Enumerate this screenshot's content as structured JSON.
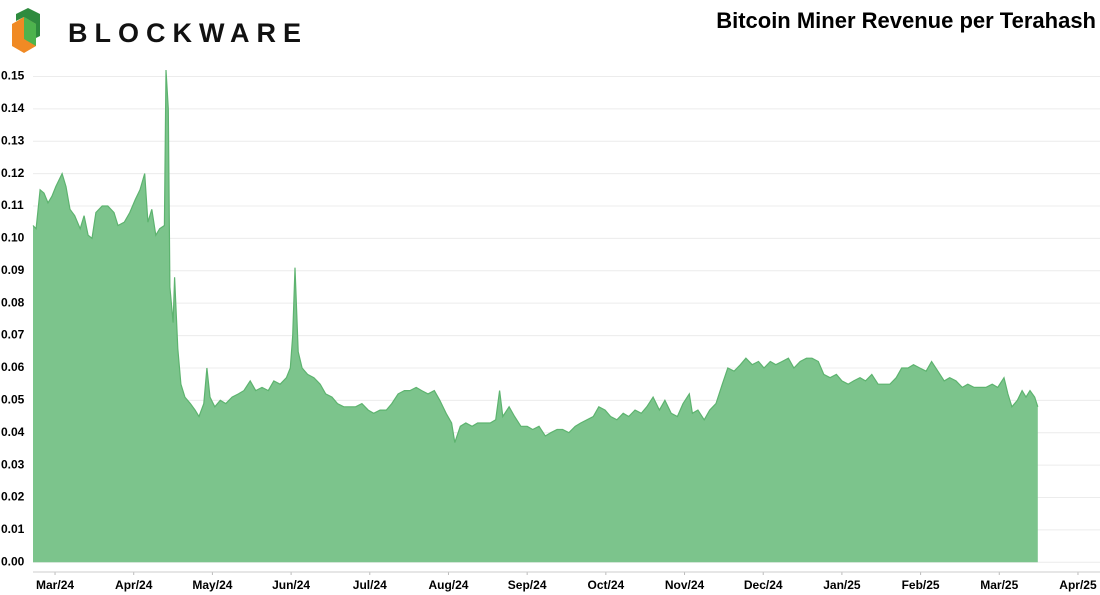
{
  "brand": "BLOCKWARE",
  "chart_data": {
    "type": "area",
    "title": "Bitcoin Miner Revenue per Terahash",
    "color": "#7cc48c",
    "line_color": "#5db36f",
    "grid": true,
    "xlim": [
      -0.28,
      13.28
    ],
    "ylim": [
      -0.003,
      0.152
    ],
    "xticks": [
      {
        "value": 0,
        "label": "Mar/24"
      },
      {
        "value": 1,
        "label": "Apr/24"
      },
      {
        "value": 2,
        "label": "May/24"
      },
      {
        "value": 3,
        "label": "Jun/24"
      },
      {
        "value": 4,
        "label": "Jul/24"
      },
      {
        "value": 5,
        "label": "Aug/24"
      },
      {
        "value": 6,
        "label": "Sep/24"
      },
      {
        "value": 7,
        "label": "Oct/24"
      },
      {
        "value": 8,
        "label": "Nov/24"
      },
      {
        "value": 9,
        "label": "Dec/24"
      },
      {
        "value": 10,
        "label": "Jan/25"
      },
      {
        "value": 11,
        "label": "Feb/25"
      },
      {
        "value": 12,
        "label": "Mar/25"
      },
      {
        "value": 13,
        "label": "Apr/25"
      }
    ],
    "yticks": [
      {
        "value": 0,
        "label": "0.00"
      },
      0.01,
      0.02,
      0.03,
      0.04,
      0.05,
      0.06,
      0.07,
      0.08,
      0.09,
      {
        "value": 0.1,
        "label": "0.10"
      },
      0.11,
      0.12,
      0.13,
      0.14,
      0.15
    ],
    "x": [
      -0.28,
      -0.24,
      -0.19,
      -0.14,
      -0.09,
      -0.04,
      0.01,
      0.09,
      0.14,
      0.19,
      0.25,
      0.32,
      0.37,
      0.42,
      0.47,
      0.52,
      0.6,
      0.67,
      0.75,
      0.8,
      0.88,
      0.95,
      1.02,
      1.08,
      1.14,
      1.18,
      1.23,
      1.28,
      1.33,
      1.39,
      1.41,
      1.44,
      1.46,
      1.5,
      1.52,
      1.56,
      1.6,
      1.65,
      1.72,
      1.78,
      1.83,
      1.89,
      1.93,
      1.97,
      2.03,
      2.1,
      2.17,
      2.25,
      2.33,
      2.4,
      2.48,
      2.55,
      2.63,
      2.71,
      2.78,
      2.86,
      2.94,
      2.99,
      3.02,
      3.05,
      3.09,
      3.14,
      3.21,
      3.29,
      3.37,
      3.44,
      3.52,
      3.59,
      3.67,
      3.75,
      3.82,
      3.9,
      3.98,
      4.05,
      4.13,
      4.21,
      4.28,
      4.36,
      4.44,
      4.51,
      4.59,
      4.66,
      4.74,
      4.82,
      4.89,
      4.97,
      5.04,
      5.08,
      5.15,
      5.22,
      5.3,
      5.37,
      5.45,
      5.53,
      5.6,
      5.65,
      5.69,
      5.77,
      5.84,
      5.92,
      6.0,
      6.07,
      6.15,
      6.23,
      6.3,
      6.38,
      6.45,
      6.53,
      6.61,
      6.68,
      6.76,
      6.84,
      6.91,
      6.99,
      7.06,
      7.14,
      7.22,
      7.29,
      7.37,
      7.45,
      7.52,
      7.6,
      7.68,
      7.75,
      7.83,
      7.91,
      7.98,
      8.06,
      8.1,
      8.17,
      8.25,
      8.32,
      8.4,
      8.48,
      8.55,
      8.63,
      8.71,
      8.78,
      8.86,
      8.94,
      9.01,
      9.09,
      9.16,
      9.24,
      9.32,
      9.39,
      9.47,
      9.55,
      9.62,
      9.7,
      9.77,
      9.85,
      9.93,
      10.0,
      10.08,
      10.15,
      10.23,
      10.3,
      10.38,
      10.46,
      10.53,
      10.61,
      10.69,
      10.76,
      10.84,
      10.91,
      10.99,
      11.07,
      11.14,
      11.22,
      11.3,
      11.37,
      11.45,
      11.53,
      11.6,
      11.68,
      11.75,
      11.83,
      11.91,
      11.98,
      12.06,
      12.11,
      12.16,
      12.23,
      12.29,
      12.34,
      12.39,
      12.45,
      12.49
    ],
    "values": [
      0.104,
      0.103,
      0.115,
      0.114,
      0.111,
      0.113,
      0.116,
      0.12,
      0.116,
      0.109,
      0.107,
      0.103,
      0.107,
      0.101,
      0.1,
      0.108,
      0.11,
      0.11,
      0.108,
      0.104,
      0.105,
      0.108,
      0.112,
      0.115,
      0.12,
      0.105,
      0.109,
      0.101,
      0.103,
      0.104,
      0.152,
      0.14,
      0.085,
      0.074,
      0.088,
      0.066,
      0.055,
      0.051,
      0.049,
      0.047,
      0.045,
      0.049,
      0.06,
      0.051,
      0.048,
      0.05,
      0.049,
      0.051,
      0.052,
      0.053,
      0.056,
      0.053,
      0.054,
      0.053,
      0.056,
      0.055,
      0.057,
      0.06,
      0.07,
      0.091,
      0.065,
      0.06,
      0.058,
      0.057,
      0.055,
      0.052,
      0.051,
      0.049,
      0.048,
      0.048,
      0.048,
      0.049,
      0.047,
      0.046,
      0.047,
      0.047,
      0.049,
      0.052,
      0.053,
      0.053,
      0.054,
      0.053,
      0.052,
      0.053,
      0.05,
      0.046,
      0.043,
      0.037,
      0.042,
      0.043,
      0.042,
      0.043,
      0.043,
      0.043,
      0.044,
      0.053,
      0.045,
      0.048,
      0.045,
      0.042,
      0.042,
      0.041,
      0.042,
      0.039,
      0.04,
      0.041,
      0.041,
      0.04,
      0.042,
      0.043,
      0.044,
      0.045,
      0.048,
      0.047,
      0.045,
      0.044,
      0.046,
      0.045,
      0.047,
      0.046,
      0.048,
      0.051,
      0.047,
      0.05,
      0.046,
      0.045,
      0.049,
      0.052,
      0.046,
      0.047,
      0.044,
      0.047,
      0.049,
      0.055,
      0.06,
      0.059,
      0.061,
      0.063,
      0.061,
      0.062,
      0.06,
      0.062,
      0.061,
      0.062,
      0.063,
      0.06,
      0.062,
      0.063,
      0.063,
      0.062,
      0.058,
      0.057,
      0.058,
      0.056,
      0.055,
      0.056,
      0.057,
      0.056,
      0.058,
      0.055,
      0.055,
      0.055,
      0.057,
      0.06,
      0.06,
      0.061,
      0.06,
      0.059,
      0.062,
      0.059,
      0.056,
      0.057,
      0.056,
      0.054,
      0.055,
      0.054,
      0.054,
      0.054,
      0.055,
      0.054,
      0.057,
      0.052,
      0.048,
      0.05,
      0.053,
      0.051,
      0.053,
      0.051,
      0.048
    ]
  }
}
